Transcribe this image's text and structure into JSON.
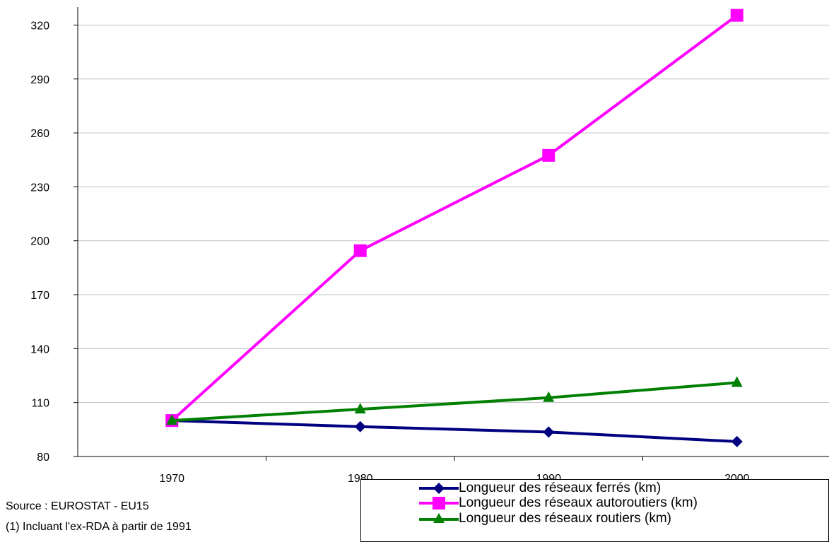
{
  "chart_data": {
    "type": "line",
    "title": "",
    "xlabel": "",
    "ylabel": "",
    "categories": [
      "1970",
      "1980",
      "1990",
      "2000"
    ],
    "ylim": [
      80,
      330
    ],
    "yticks": [
      "80",
      "110",
      "140",
      "170",
      "200",
      "230",
      "260",
      "290",
      "320"
    ],
    "grid": "horizontal",
    "legend_placement": "bottom-right",
    "series": [
      {
        "name": "Longueur des réseaux ferrés (km)",
        "values": [
          100,
          96.6,
          93.6,
          88.3
        ],
        "color": "#000080",
        "marker": "diamond"
      },
      {
        "name": "Longueur des réseaux autoroutiers (km)",
        "values": [
          100,
          194.5,
          247.5,
          325.4
        ],
        "color": "#ff00ff",
        "marker": "square"
      },
      {
        "name": "Longueur des réseaux routiers (km)",
        "values": [
          100,
          106.3,
          112.7,
          121.1
        ],
        "color": "#008000",
        "marker": "triangle"
      }
    ]
  },
  "notes": {
    "source": "Source : EUROSTAT - EU15",
    "footnote": "(1) Incluant l'ex-RDA à partir de 1991"
  }
}
